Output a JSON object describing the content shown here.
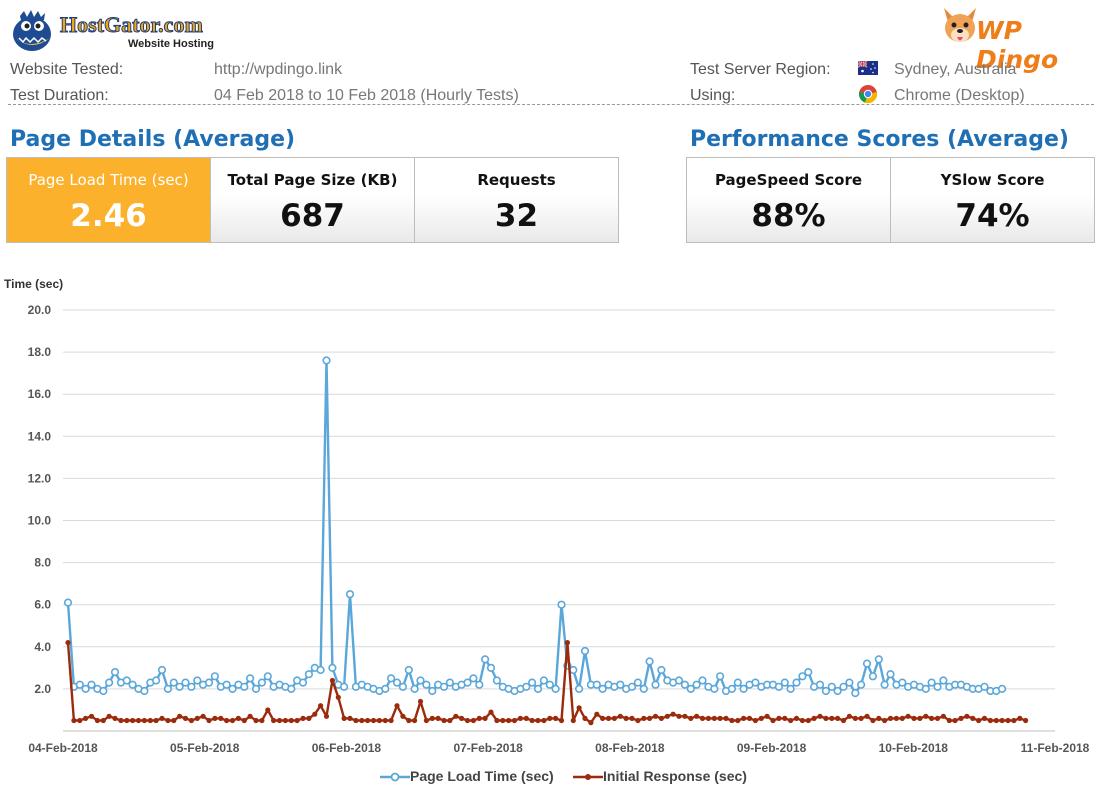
{
  "header": {
    "hostgator": {
      "brand": "HostGator.com",
      "sub": "Website Hosting"
    },
    "wpdingo": {
      "brand": "WP Dingo"
    },
    "website_tested_label": "Website Tested:",
    "website_tested_value": "http://wpdingo.link",
    "test_duration_label": "Test Duration:",
    "test_duration_value": "04 Feb 2018 to 10 Feb 2018 (Hourly Tests)",
    "region_label": "Test Server Region:",
    "region_value": "Sydney, Australia",
    "using_label": "Using:",
    "using_value": "Chrome (Desktop)"
  },
  "page_details": {
    "title": "Page Details (Average)",
    "load_time_label": "Page Load Time (sec)",
    "load_time_value": "2.46",
    "page_size_label": "Total Page Size (KB)",
    "page_size_value": "687",
    "requests_label": "Requests",
    "requests_value": "32"
  },
  "performance": {
    "title": "Performance Scores (Average)",
    "pagespeed_label": "PageSpeed Score",
    "pagespeed_value": "88%",
    "yslow_label": "YSlow Score",
    "yslow_value": "74%"
  },
  "colors": {
    "accent": "#fbb12c",
    "title_blue": "#1f6fb5",
    "series1": "#5ba7d9",
    "series2": "#9c2b0d"
  },
  "chart_data": {
    "type": "line",
    "ylabel": "Time (sec)",
    "ylim": [
      0,
      20
    ],
    "yticks": [
      "2.0",
      "4.0",
      "6.0",
      "8.0",
      "10.0",
      "12.0",
      "14.0",
      "16.0",
      "18.0",
      "20.0"
    ],
    "x_tick_labels": [
      "04-Feb-2018",
      "05-Feb-2018",
      "06-Feb-2018",
      "07-Feb-2018",
      "08-Feb-2018",
      "09-Feb-2018",
      "10-Feb-2018",
      "11-Feb-2018"
    ],
    "grid": true,
    "legend_position": "bottom",
    "series": [
      {
        "name": "Page Load Time (sec)",
        "color": "#5ba7d9",
        "values": [
          6.1,
          2.1,
          2.2,
          2.0,
          2.2,
          2.0,
          1.9,
          2.3,
          2.8,
          2.3,
          2.4,
          2.2,
          2.0,
          1.9,
          2.3,
          2.4,
          2.9,
          2.0,
          2.3,
          2.1,
          2.3,
          2.1,
          2.4,
          2.2,
          2.3,
          2.6,
          2.1,
          2.2,
          2.0,
          2.2,
          2.1,
          2.5,
          2.0,
          2.3,
          2.6,
          2.1,
          2.2,
          2.1,
          2.0,
          2.4,
          2.3,
          2.7,
          3.0,
          2.9,
          17.6,
          3.0,
          2.2,
          2.1,
          6.5,
          2.1,
          2.2,
          2.1,
          2.0,
          1.9,
          2.0,
          2.5,
          2.3,
          2.1,
          2.9,
          2.0,
          2.4,
          2.2,
          1.9,
          2.2,
          2.1,
          2.3,
          2.1,
          2.2,
          2.3,
          2.5,
          2.2,
          3.4,
          3.0,
          2.4,
          2.1,
          2.0,
          1.9,
          2.0,
          2.1,
          2.3,
          2.0,
          2.4,
          2.2,
          2.0,
          6.0,
          3.1,
          2.9,
          2.0,
          3.8,
          2.2,
          2.2,
          2.0,
          2.2,
          2.1,
          2.2,
          2.0,
          2.1,
          2.3,
          2.0,
          3.3,
          2.2,
          2.9,
          2.4,
          2.3,
          2.4,
          2.2,
          2.0,
          2.2,
          2.4,
          2.1,
          2.0,
          2.6,
          1.9,
          2.0,
          2.3,
          2.0,
          2.2,
          2.3,
          2.1,
          2.2,
          2.2,
          2.1,
          2.3,
          2.0,
          2.3,
          2.6,
          2.8,
          2.1,
          2.2,
          1.9,
          2.1,
          1.9,
          2.1,
          2.3,
          1.8,
          2.2,
          3.2,
          2.6,
          3.4,
          2.2,
          2.7,
          2.2,
          2.3,
          2.1,
          2.2,
          2.1,
          2.0,
          2.3,
          2.1,
          2.4,
          2.1,
          2.2,
          2.2,
          2.1,
          2.0,
          2.0,
          2.1,
          1.9,
          1.9,
          2.0
        ]
      },
      {
        "name": "Initial Response (sec)",
        "color": "#9c2b0d",
        "values": [
          4.2,
          0.5,
          0.5,
          0.6,
          0.7,
          0.5,
          0.5,
          0.7,
          0.6,
          0.5,
          0.5,
          0.5,
          0.5,
          0.5,
          0.5,
          0.5,
          0.6,
          0.5,
          0.5,
          0.7,
          0.6,
          0.5,
          0.6,
          0.7,
          0.5,
          0.6,
          0.6,
          0.5,
          0.5,
          0.6,
          0.5,
          0.7,
          0.5,
          0.5,
          1.0,
          0.5,
          0.5,
          0.5,
          0.5,
          0.5,
          0.6,
          0.6,
          0.8,
          1.2,
          0.7,
          2.4,
          1.6,
          0.6,
          0.6,
          0.5,
          0.5,
          0.5,
          0.5,
          0.5,
          0.5,
          0.5,
          1.2,
          0.7,
          0.5,
          0.5,
          1.4,
          0.5,
          0.6,
          0.6,
          0.5,
          0.5,
          0.7,
          0.6,
          0.5,
          0.5,
          0.6,
          0.6,
          0.9,
          0.5,
          0.5,
          0.5,
          0.5,
          0.6,
          0.6,
          0.5,
          0.5,
          0.5,
          0.6,
          0.6,
          0.5,
          4.2,
          0.5,
          1.1,
          0.6,
          0.4,
          0.8,
          0.6,
          0.6,
          0.6,
          0.7,
          0.6,
          0.6,
          0.5,
          0.6,
          0.6,
          0.7,
          0.6,
          0.7,
          0.8,
          0.7,
          0.7,
          0.6,
          0.7,
          0.6,
          0.6,
          0.6,
          0.6,
          0.6,
          0.5,
          0.5,
          0.6,
          0.6,
          0.5,
          0.6,
          0.7,
          0.5,
          0.6,
          0.6,
          0.5,
          0.6,
          0.5,
          0.5,
          0.6,
          0.7,
          0.6,
          0.6,
          0.6,
          0.5,
          0.7,
          0.6,
          0.6,
          0.7,
          0.5,
          0.6,
          0.5,
          0.6,
          0.6,
          0.6,
          0.7,
          0.6,
          0.6,
          0.7,
          0.6,
          0.6,
          0.7,
          0.5,
          0.5,
          0.6,
          0.7,
          0.6,
          0.5,
          0.6,
          0.5,
          0.5,
          0.5,
          0.5,
          0.5,
          0.6,
          0.5
        ]
      }
    ]
  }
}
